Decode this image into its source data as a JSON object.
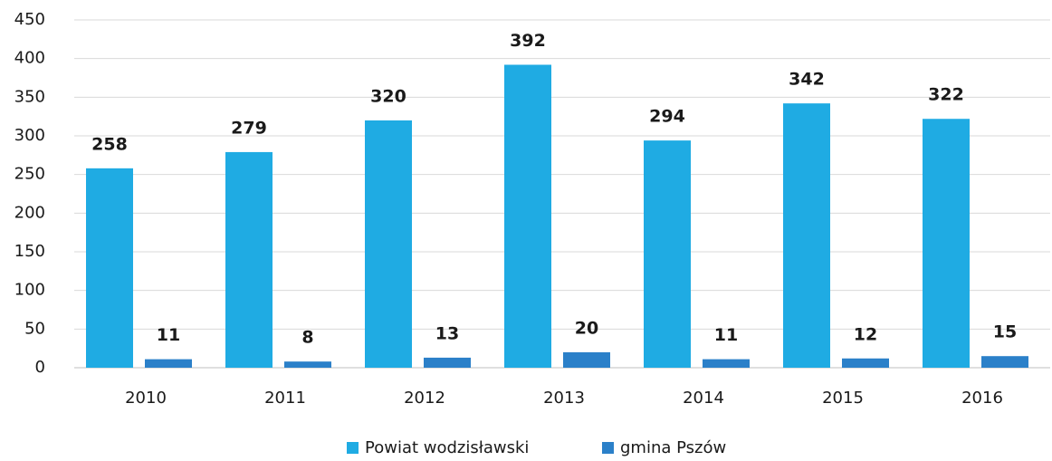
{
  "chart_data": {
    "type": "bar",
    "categories": [
      "2010",
      "2011",
      "2012",
      "2013",
      "2014",
      "2015",
      "2016"
    ],
    "series": [
      {
        "name": "Powiat wodzisławski",
        "color": "#1fabe3",
        "values": [
          258,
          279,
          320,
          392,
          294,
          342,
          322
        ]
      },
      {
        "name": "gmina Pszów",
        "color": "#2b80c9",
        "values": [
          11,
          8,
          13,
          20,
          11,
          12,
          15
        ]
      }
    ],
    "ylim": [
      0,
      450
    ],
    "yticks": [
      0,
      50,
      100,
      150,
      200,
      250,
      300,
      350,
      400,
      450
    ],
    "grid": true,
    "legend": "bottom"
  }
}
